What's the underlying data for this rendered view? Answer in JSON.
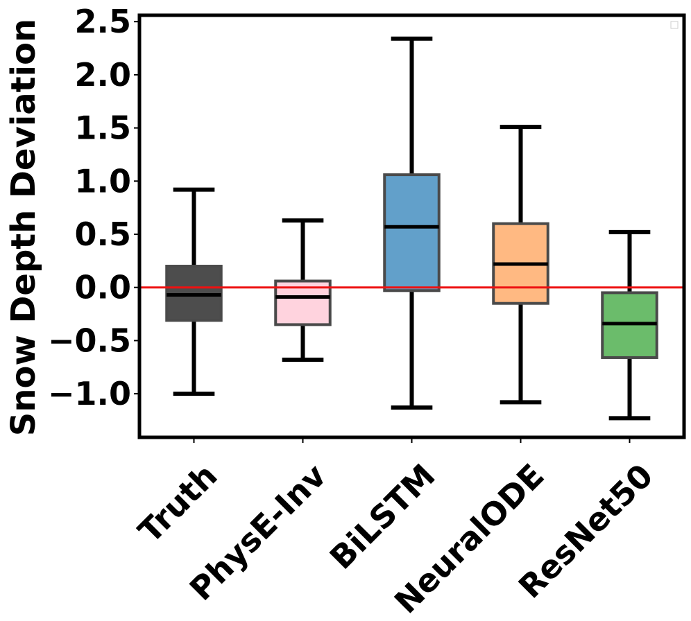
{
  "chart_data": {
    "type": "box",
    "title": "",
    "xlabel": "",
    "ylabel": "Snow Depth Deviation",
    "ylim": [
      -1.41,
      2.56
    ],
    "yticks": [
      -1.0,
      -0.5,
      0.0,
      0.5,
      1.0,
      1.5,
      2.0,
      2.5
    ],
    "ytick_labels": [
      "−1.0",
      "−0.5",
      "0.0",
      "0.5",
      "1.0",
      "1.5",
      "2.0",
      "2.5"
    ],
    "reference_line": {
      "y": 0.0,
      "color": "#ee1111"
    },
    "legend": {
      "position": "top-right",
      "entries": []
    },
    "categories": [
      "Truth",
      "PhysE-Inv",
      "BiLSTM",
      "NeuralODE",
      "ResNet50"
    ],
    "series": [
      {
        "name": "Truth",
        "whisker_low": -1.0,
        "q1": -0.31,
        "median": -0.07,
        "q3": 0.2,
        "whisker_high": 0.92,
        "color": "#4d4d4d"
      },
      {
        "name": "PhysE-Inv",
        "whisker_low": -0.68,
        "q1": -0.35,
        "median": -0.09,
        "q3": 0.06,
        "whisker_high": 0.63,
        "color": "#ffd3de"
      },
      {
        "name": "BiLSTM",
        "whisker_low": -1.13,
        "q1": -0.03,
        "median": 0.57,
        "q3": 1.06,
        "whisker_high": 2.34,
        "color": "#62a0ca"
      },
      {
        "name": "NeuralODE",
        "whisker_low": -1.08,
        "q1": -0.15,
        "median": 0.22,
        "q3": 0.6,
        "whisker_high": 1.51,
        "color": "#ffb982"
      },
      {
        "name": "ResNet50",
        "whisker_low": -1.23,
        "q1": -0.66,
        "median": -0.34,
        "q3": -0.05,
        "whisker_high": 0.52,
        "color": "#6bbc6b"
      }
    ]
  }
}
